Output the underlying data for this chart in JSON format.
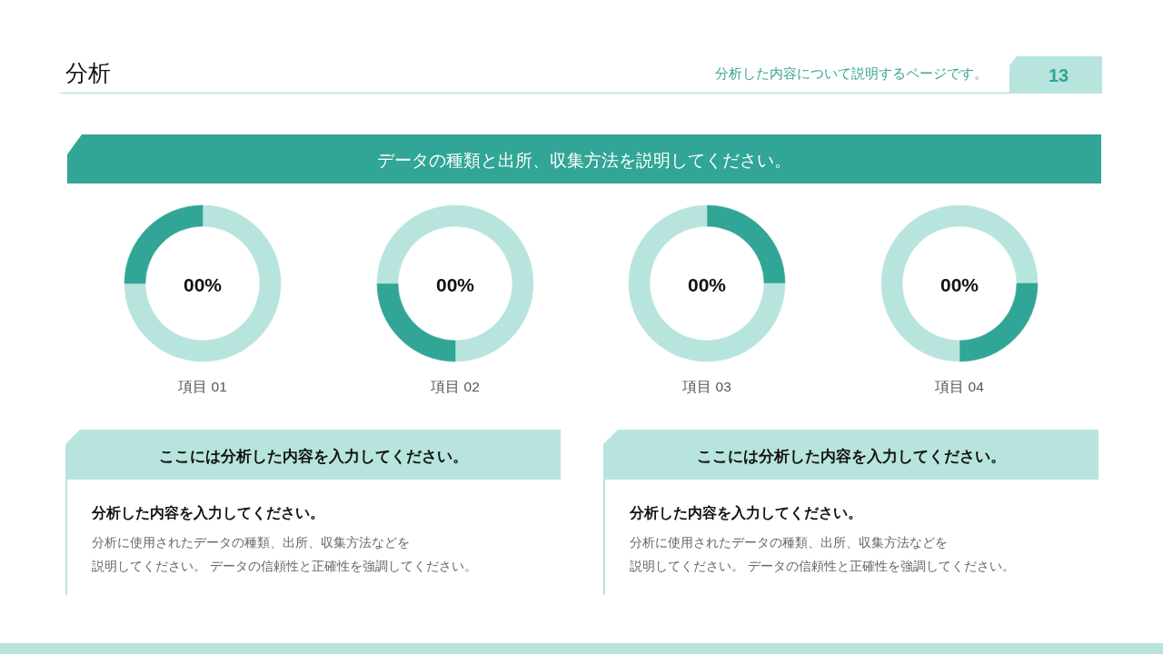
{
  "chart_data": [
    {
      "type": "other",
      "title": "分析",
      "subtitle": "分析した内容について説明するページです。",
      "annotations": [
        "13",
        "データの種類と出所、収集方法を説明してください。"
      ]
    },
    {
      "type": "donut",
      "title": "項目 01",
      "annotations": [
        "00%"
      ],
      "categories": [
        null,
        null
      ],
      "values": [
        75,
        25
      ],
      "colors": [
        "#b8e4de",
        "#31a596"
      ]
    },
    {
      "type": "donut",
      "title": "項目 02",
      "annotations": [
        "00%"
      ],
      "categories": [
        null,
        null,
        null
      ],
      "values": [
        50,
        25,
        25
      ],
      "colors": [
        "#b8e4de",
        "#31a596",
        "#b8e4de"
      ]
    },
    {
      "type": "donut",
      "title": "項目 03",
      "annotations": [
        "00%"
      ],
      "categories": [
        null,
        null
      ],
      "values": [
        25,
        75
      ],
      "colors": [
        "#31a596",
        "#b8e4de"
      ]
    },
    {
      "type": "donut",
      "title": "項目 04",
      "annotations": [
        "00%"
      ],
      "categories": [
        null,
        null,
        null
      ],
      "values": [
        25,
        25,
        50
      ],
      "colors": [
        "#b8e4de",
        "#31a596",
        "#b8e4de"
      ]
    },
    {
      "type": "other",
      "title": "ここには分析した内容を入力してください。",
      "subtitle": "分析した内容を入力してください。",
      "annotations": [
        "分析に使用されたデータの種類、出所、収集方法などを",
        "説明してください。 データの信頼性と正確性を強調してください。"
      ]
    },
    {
      "type": "other",
      "title": "ここには分析した内容を入力してください。",
      "subtitle": "分析した内容を入力してください。",
      "annotations": [
        "分析に使用されたデータの種類、出所、収集方法などを",
        "説明してください。 データの信頼性と正確性を強調してください。"
      ]
    }
  ]
}
